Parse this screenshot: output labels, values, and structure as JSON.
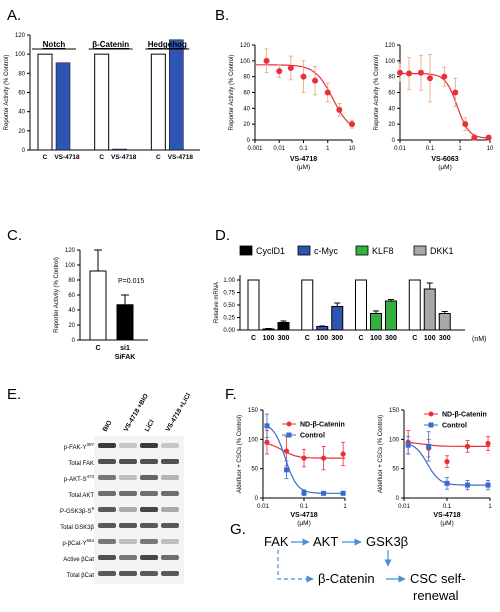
{
  "panel_labels": [
    "A.",
    "B.",
    "C.",
    "D.",
    "E.",
    "F.",
    "G."
  ],
  "chart_data": [
    {
      "id": "A",
      "type": "bar",
      "ylabel": "Reporter Activity (% Control)",
      "yticks": [
        "0",
        "20",
        "40",
        "60",
        "80",
        "100",
        "120"
      ],
      "ylim": [
        0,
        120
      ],
      "groups": [
        {
          "title": "Notch",
          "categories": [
            "C",
            "VS-4718"
          ],
          "values": [
            100,
            91
          ]
        },
        {
          "title": "β-Catenin",
          "categories": [
            "C",
            "VS-4718"
          ],
          "values": [
            100,
            1
          ]
        },
        {
          "title": "Hedgehog",
          "categories": [
            "C",
            "VS-4718"
          ],
          "values": [
            100,
            115
          ]
        }
      ],
      "colors": {
        "control": "#ffffff",
        "treated": "#2e55b4"
      }
    },
    {
      "id": "B1",
      "type": "scatter",
      "xlabel": "VS-4718",
      "xunit": "(μM)",
      "ylabel": "Reporter Activity (% Control)",
      "xticks": [
        "0.001",
        "0.01",
        "0.1",
        "1",
        "10"
      ],
      "yticks": [
        "0",
        "20",
        "40",
        "60",
        "80",
        "100",
        "120"
      ],
      "x": [
        0.003,
        0.01,
        0.03,
        0.1,
        0.3,
        1,
        3,
        10
      ],
      "values": [
        100,
        87,
        91,
        80,
        75,
        60,
        38,
        20
      ],
      "errors": [
        15,
        8,
        15,
        20,
        18,
        12,
        8,
        5
      ],
      "xscale": "log",
      "ylim": [
        0,
        120
      ]
    },
    {
      "id": "B2",
      "type": "scatter",
      "xlabel": "VS-6063",
      "xunit": "(μM)",
      "ylabel": "Reporter Activity (% Control)",
      "xticks": [
        "0.01",
        "0.1",
        "1",
        "10"
      ],
      "yticks": [
        "0",
        "20",
        "40",
        "60",
        "80",
        "100",
        "120"
      ],
      "x": [
        0.01,
        0.02,
        0.05,
        0.1,
        0.3,
        0.7,
        1.5,
        3,
        9
      ],
      "values": [
        85,
        84,
        85,
        78,
        80,
        60,
        20,
        3,
        3
      ],
      "errors": [
        12,
        20,
        22,
        30,
        12,
        18,
        8,
        3,
        3
      ],
      "xscale": "log",
      "ylim": [
        0,
        120
      ]
    },
    {
      "id": "C",
      "type": "bar",
      "ylabel": "Reporter Activity (% Control)",
      "yticks": [
        "0",
        "20",
        "40",
        "60",
        "80",
        "100",
        "120"
      ],
      "categories": [
        "C",
        "si1"
      ],
      "sublabel": "SiFAK",
      "values": [
        92,
        47
      ],
      "errors": [
        28,
        13
      ],
      "annotation": "P=0.015",
      "ylim": [
        0,
        120
      ]
    },
    {
      "id": "D",
      "type": "bar",
      "ylabel": "Relative mRNA",
      "yticks": [
        "0.00",
        "0.25",
        "0.50",
        "0.75",
        "1.00"
      ],
      "ylim": [
        0,
        1.1
      ],
      "categories": [
        "C",
        "100",
        "300"
      ],
      "unit": "(nM)",
      "series": [
        {
          "name": "CyclD1",
          "color": "#000000",
          "values": [
            1.0,
            0.02,
            0.15
          ],
          "errors": [
            0,
            0.01,
            0.03
          ]
        },
        {
          "name": "c-Myc",
          "color": "#2e55b4",
          "values": [
            1.0,
            0.07,
            0.47
          ],
          "errors": [
            0,
            0.01,
            0.07
          ]
        },
        {
          "name": "KLF8",
          "color": "#33b040",
          "values": [
            1.0,
            0.33,
            0.58
          ],
          "errors": [
            0,
            0.05,
            0.03
          ]
        },
        {
          "name": "DKK1",
          "color": "#a8a8a8",
          "values": [
            1.0,
            0.82,
            0.33
          ],
          "errors": [
            0,
            0.12,
            0.04
          ]
        }
      ]
    },
    {
      "id": "F1",
      "type": "line",
      "xlabel": "VS-4718",
      "xunit": "(μM)",
      "ylabel": "Aldefluor + CSCs (% Control)",
      "xticks": [
        "0.01",
        "0.1",
        "1"
      ],
      "yticks": [
        "0",
        "50",
        "100",
        "150"
      ],
      "xscale": "log",
      "ylim": [
        0,
        150
      ],
      "x": [
        0.0125,
        0.0375,
        0.1,
        0.3,
        0.9
      ],
      "series": [
        {
          "name": "ND-β-Catenin",
          "color": "#e8303a",
          "values": [
            95,
            80,
            68,
            68,
            75
          ],
          "errors": [
            20,
            25,
            15,
            20,
            20
          ]
        },
        {
          "name": "Control",
          "color": "#3a6ad0",
          "values": [
            123,
            48,
            9,
            8,
            8
          ],
          "errors": [
            20,
            15,
            5,
            3,
            3
          ]
        }
      ]
    },
    {
      "id": "F2",
      "type": "line",
      "xlabel": "VS-4718",
      "xunit": "(μM)",
      "ylabel": "Aldefluor + CSCs (% Control)",
      "xticks": [
        "0.01",
        "0.1",
        "1"
      ],
      "yticks": [
        "0",
        "50",
        "100",
        "150"
      ],
      "xscale": "log",
      "ylim": [
        0,
        150
      ],
      "x": [
        0.0125,
        0.0375,
        0.1,
        0.3,
        0.9
      ],
      "series": [
        {
          "name": "ND-β-Catenin",
          "color": "#e8303a",
          "values": [
            95,
            85,
            62,
            88,
            93
          ],
          "errors": [
            20,
            15,
            10,
            10,
            12
          ]
        },
        {
          "name": "Control",
          "color": "#3a6ad0",
          "values": [
            90,
            88,
            25,
            22,
            22
          ],
          "errors": [
            15,
            25,
            10,
            8,
            8
          ]
        }
      ]
    }
  ],
  "blot": {
    "columns": [
      "BIO",
      "VS-4718 +BIO",
      "LiCl",
      "VS-4718 +LiCl"
    ],
    "rows": [
      {
        "label": "p-FAK-Y",
        "sup": "397",
        "intensity": [
          0.85,
          0.15,
          0.85,
          0.15
        ]
      },
      {
        "label": "Total FAK",
        "sup": "",
        "intensity": [
          0.75,
          0.75,
          0.75,
          0.75
        ]
      },
      {
        "label": "p-AKT-S",
        "sup": "473",
        "intensity": [
          0.55,
          0.2,
          0.65,
          0.25
        ]
      },
      {
        "label": "Total AKT",
        "sup": "",
        "intensity": [
          0.6,
          0.6,
          0.6,
          0.6
        ]
      },
      {
        "label": "P-GSK3β-S",
        "sup": "9",
        "intensity": [
          0.7,
          0.3,
          0.8,
          0.3
        ]
      },
      {
        "label": "Total GSK3β",
        "sup": "",
        "intensity": [
          0.7,
          0.7,
          0.7,
          0.7
        ]
      },
      {
        "label": "p-βCat-Y",
        "sup": "654",
        "intensity": [
          0.55,
          0.2,
          0.55,
          0.2
        ]
      },
      {
        "label": "Active βCat",
        "sup": "",
        "intensity": [
          0.75,
          0.55,
          0.8,
          0.6
        ]
      },
      {
        "label": "Total βCat",
        "sup": "",
        "intensity": [
          0.7,
          0.7,
          0.7,
          0.7
        ]
      }
    ]
  },
  "pathway": {
    "nodes": {
      "fak": "FAK",
      "akt": "AKT",
      "gsk": "GSK3β",
      "bcat": "β-Catenin",
      "csc1": "CSC self-",
      "csc2": "renewal"
    },
    "arrow_color": "#4a8fd8"
  }
}
